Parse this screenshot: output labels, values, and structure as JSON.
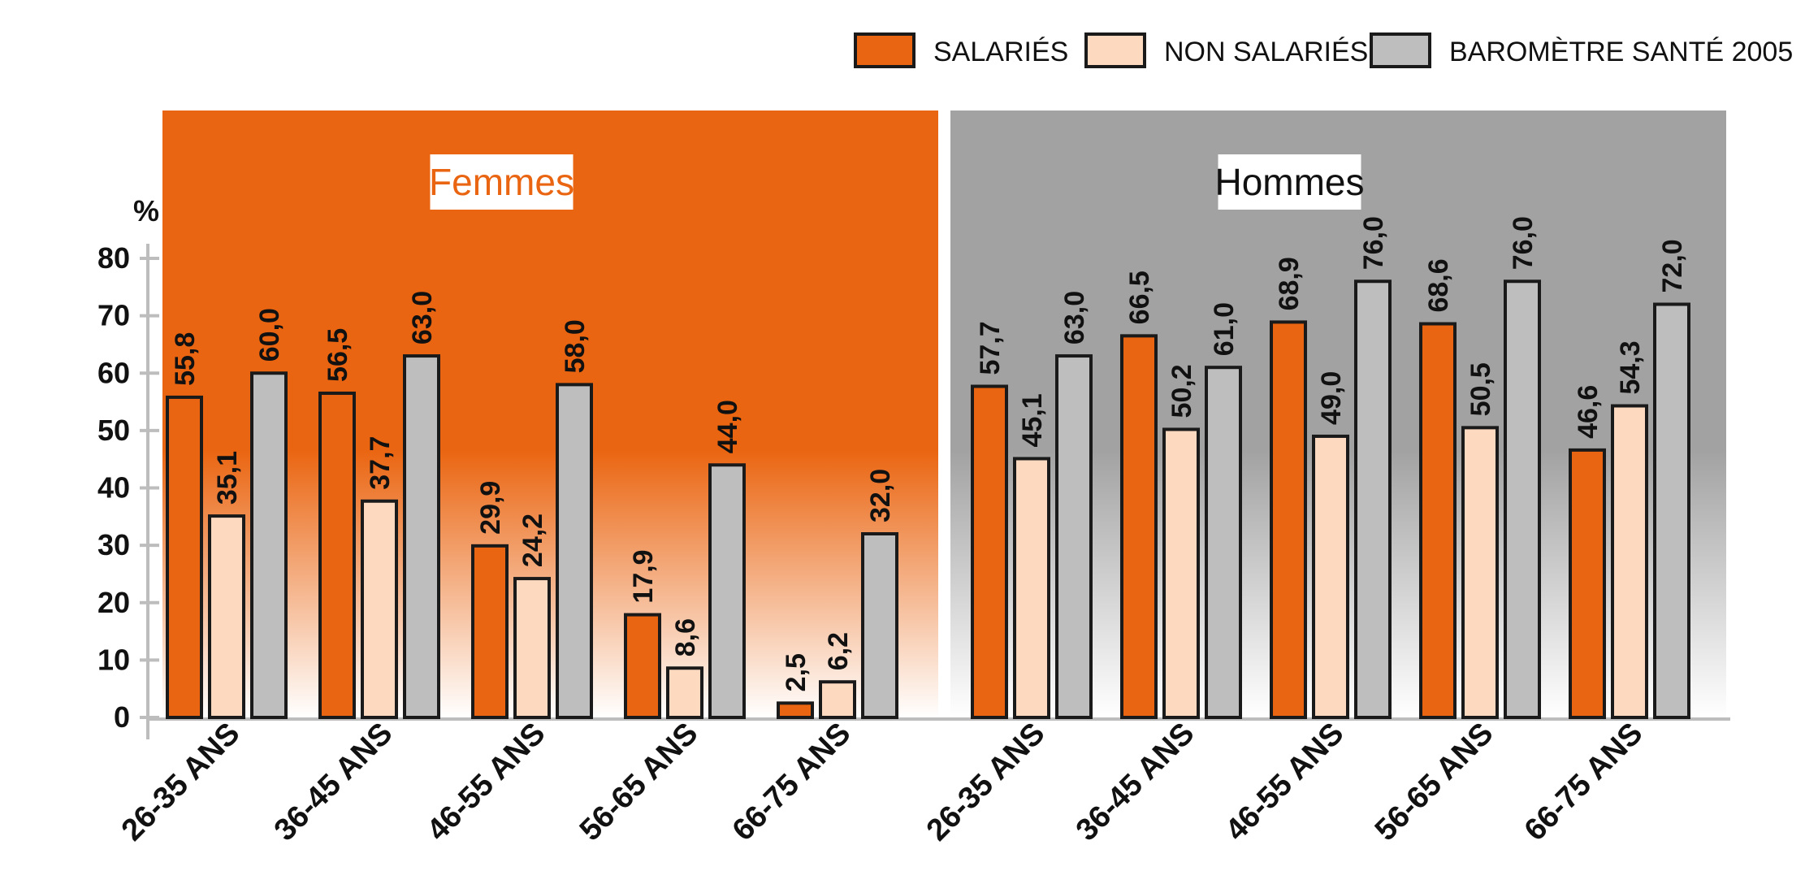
{
  "chart_data": {
    "type": "bar",
    "y_unit": "%",
    "ylim": [
      0,
      80
    ],
    "yticks": [
      "0",
      "10",
      "20",
      "30",
      "40",
      "50",
      "60",
      "70",
      "80"
    ],
    "grid": false,
    "legend_position": "top-right",
    "legend": [
      {
        "name": "SALARIÉS",
        "color": "#EA6511"
      },
      {
        "name": "NON SALARIÉS",
        "color": "#FCD9BF"
      },
      {
        "name": "BAROMÈTRE SANTÉ 2005",
        "color": "#BEBEBE"
      }
    ],
    "categories": [
      "26-35 ANS",
      "36-45 ANS",
      "46-55 ANS",
      "56-65 ANS",
      "66-75 ANS"
    ],
    "panels": [
      {
        "title": "Femmes",
        "title_color": "#EA6511",
        "background": "#EA6511",
        "series": [
          {
            "name": "SALARIÉS",
            "values": [
              55.8,
              56.5,
              29.9,
              17.9,
              2.5
            ],
            "labels": [
              "55,8",
              "56,5",
              "29,9",
              "17,9",
              "2,5"
            ]
          },
          {
            "name": "NON SALARIÉS",
            "values": [
              35.1,
              37.7,
              24.2,
              8.6,
              6.2
            ],
            "labels": [
              "35,1",
              "37,7",
              "24,2",
              "8,6",
              "6,2"
            ]
          },
          {
            "name": "BAROMÈTRE SANTÉ 2005",
            "values": [
              60.0,
              63.0,
              58.0,
              44.0,
              32.0
            ],
            "labels": [
              "60,0",
              "63,0",
              "58,0",
              "44,0",
              "32,0"
            ]
          }
        ]
      },
      {
        "title": "Hommes",
        "title_color": "#111111",
        "background": "#A2A2A2",
        "series": [
          {
            "name": "SALARIÉS",
            "values": [
              57.7,
              66.5,
              68.9,
              68.6,
              46.6
            ],
            "labels": [
              "57,7",
              "66,5",
              "68,9",
              "68,6",
              "46,6"
            ]
          },
          {
            "name": "NON SALARIÉS",
            "values": [
              45.1,
              50.2,
              49.0,
              50.5,
              54.3
            ],
            "labels": [
              "45,1",
              "50,2",
              "49,0",
              "50,5",
              "54,3"
            ]
          },
          {
            "name": "BAROMÈTRE SANTÉ 2005",
            "values": [
              63.0,
              61.0,
              76.0,
              76.0,
              72.0
            ],
            "labels": [
              "63,0",
              "61,0",
              "76,0",
              "76,0",
              "72,0"
            ]
          }
        ]
      }
    ]
  }
}
